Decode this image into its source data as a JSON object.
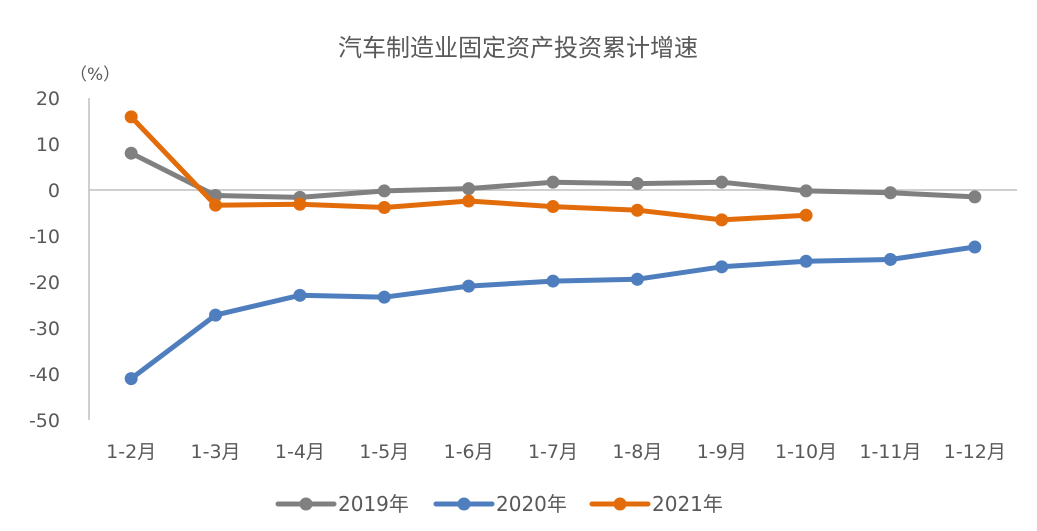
{
  "chart_data": {
    "type": "line",
    "title": "汽车制造业固定资产投资累计增速",
    "unit_label": "（%）",
    "categories": [
      "1-2月",
      "1-3月",
      "1-4月",
      "1-5月",
      "1-6月",
      "1-7月",
      "1-8月",
      "1-9月",
      "1-10月",
      "1-11月",
      "1-12月"
    ],
    "y_ticks": [
      "20",
      "10",
      "0",
      "-10",
      "-20",
      "-30",
      "-40",
      "-50"
    ],
    "ylim": [
      -50,
      20
    ],
    "grid": false,
    "legend_position": "bottom",
    "series": [
      {
        "name": "2019年",
        "color": "#808080",
        "values": [
          8.0,
          -1.2,
          -1.6,
          -0.2,
          0.3,
          1.7,
          1.4,
          1.7,
          -0.2,
          -0.6,
          -1.5
        ]
      },
      {
        "name": "2020年",
        "color": "#4e7ebd",
        "values": [
          -41.0,
          -27.2,
          -22.9,
          -23.3,
          -20.9,
          -19.8,
          -19.4,
          -16.7,
          -15.5,
          -15.1,
          -12.4
        ]
      },
      {
        "name": "2021年",
        "color": "#e36c0a",
        "values": [
          15.9,
          -3.3,
          -3.1,
          -3.8,
          -2.4,
          -3.6,
          -4.4,
          -6.5,
          -5.5,
          null,
          null
        ]
      }
    ]
  }
}
